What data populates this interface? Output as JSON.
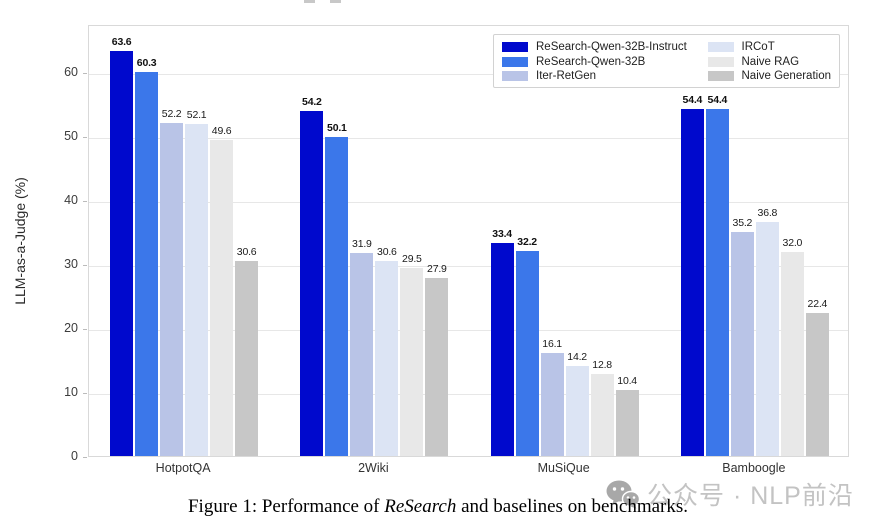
{
  "figure": {
    "caption": {
      "prefix": "Figure 1: Performance of ",
      "italic": "ReSearch",
      "suffix": " and baselines on benchmarks."
    },
    "watermark": {
      "icon": "wechat-icon",
      "text": "公众号 · NLP前沿"
    }
  },
  "chart_data": {
    "type": "bar",
    "title": "",
    "xlabel": "",
    "ylabel": "LLM-as-a-Judge (%)",
    "ylim": [
      0,
      67.5
    ],
    "yticks": [
      0,
      10,
      20,
      30,
      40,
      50,
      60
    ],
    "grid": true,
    "legend_position": "upper right inside plot",
    "categories": [
      "HotpotQA",
      "2Wiki",
      "MuSiQue",
      "Bamboogle"
    ],
    "series": [
      {
        "name": "ReSearch-Qwen-32B-Instruct",
        "color": "#0009cd",
        "bold_labels": true,
        "values": [
          63.6,
          54.2,
          33.4,
          54.4
        ]
      },
      {
        "name": "ReSearch-Qwen-32B",
        "color": "#3b77ea",
        "bold_labels": true,
        "values": [
          60.3,
          50.1,
          32.2,
          54.4
        ]
      },
      {
        "name": "Iter-RetGen",
        "color": "#b9c4e7",
        "bold_labels": false,
        "values": [
          52.2,
          31.9,
          16.1,
          35.2
        ]
      },
      {
        "name": "IRCoT",
        "color": "#dce4f4",
        "bold_labels": false,
        "values": [
          52.1,
          30.6,
          14.2,
          36.8
        ]
      },
      {
        "name": "Naive RAG",
        "color": "#e8e8e8",
        "bold_labels": false,
        "values": [
          49.6,
          29.5,
          12.8,
          32.0
        ]
      },
      {
        "name": "Naive Generation",
        "color": "#c7c7c7",
        "bold_labels": false,
        "values": [
          30.6,
          27.9,
          10.4,
          22.4
        ]
      }
    ]
  }
}
